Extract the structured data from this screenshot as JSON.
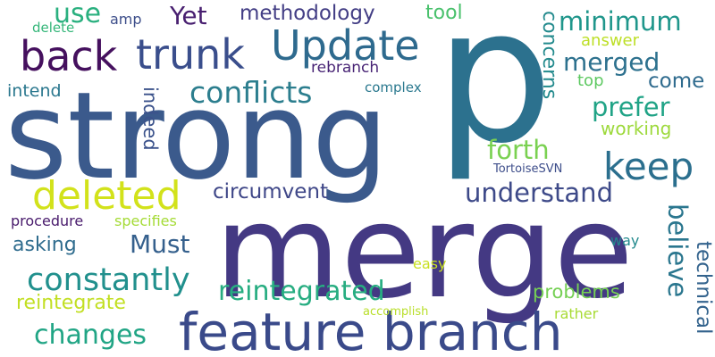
{
  "words": [
    {
      "text": "p",
      "color": "#2c718e"
    },
    {
      "text": "strong",
      "color": "#3b5a8c"
    },
    {
      "text": "merge",
      "color": "#443983"
    },
    {
      "text": "feature branch",
      "color": "#3a4a8a"
    },
    {
      "text": "Update",
      "color": "#2e6a8e"
    },
    {
      "text": "trunk",
      "color": "#3a4e8c"
    },
    {
      "text": "back",
      "color": "#45105e"
    },
    {
      "text": "deleted",
      "color": "#d2e21b"
    },
    {
      "text": "keep",
      "color": "#2b6f8e"
    },
    {
      "text": "conflicts",
      "color": "#2c7e8e"
    },
    {
      "text": "constantly",
      "color": "#21908d"
    },
    {
      "text": "reintegrated",
      "color": "#27ad81"
    },
    {
      "text": "changes",
      "color": "#21a585"
    },
    {
      "text": "understand",
      "color": "#3e4a89"
    },
    {
      "text": "Must",
      "color": "#35608d"
    },
    {
      "text": "Yet",
      "color": "#481f70"
    },
    {
      "text": "methodology",
      "color": "#433e85"
    },
    {
      "text": "circumvent",
      "color": "#3f4788"
    },
    {
      "text": "forth",
      "color": "#7ad151"
    },
    {
      "text": "minimum",
      "color": "#1f968b"
    },
    {
      "text": "merged",
      "color": "#2d718e"
    },
    {
      "text": "prefer",
      "color": "#20a386"
    },
    {
      "text": "come",
      "color": "#2f6b8e"
    },
    {
      "text": "use",
      "color": "#2ab07f"
    },
    {
      "text": "tool",
      "color": "#4ac16d"
    },
    {
      "text": "concerns",
      "color": "#238a8d"
    },
    {
      "text": "indeed",
      "color": "#3b528b"
    },
    {
      "text": "believe",
      "color": "#2a768e"
    },
    {
      "text": "technical",
      "color": "#33638d"
    },
    {
      "text": "reintegrate",
      "color": "#c2df23"
    },
    {
      "text": "problems",
      "color": "#75d054"
    },
    {
      "text": "asking",
      "color": "#2f6c8e"
    },
    {
      "text": "procedure",
      "color": "#481a6c"
    },
    {
      "text": "specifies",
      "color": "#a5db36"
    },
    {
      "text": "intend",
      "color": "#2a778e"
    },
    {
      "text": "working",
      "color": "#9dd93b"
    },
    {
      "text": "answer",
      "color": "#bddf26"
    },
    {
      "text": "top",
      "color": "#5ec962"
    },
    {
      "text": "rebranch",
      "color": "#482475"
    },
    {
      "text": "complex",
      "color": "#2a788e"
    },
    {
      "text": "amp",
      "color": "#3d4e8a"
    },
    {
      "text": "delete",
      "color": "#34b679"
    },
    {
      "text": "TortoiseSVN",
      "color": "#3d4d8a"
    },
    {
      "text": "way",
      "color": "#238a8d"
    },
    {
      "text": "easy",
      "color": "#c8e020"
    },
    {
      "text": "rather",
      "color": "#a8db34"
    },
    {
      "text": "accomplish",
      "color": "#b8de29"
    }
  ]
}
